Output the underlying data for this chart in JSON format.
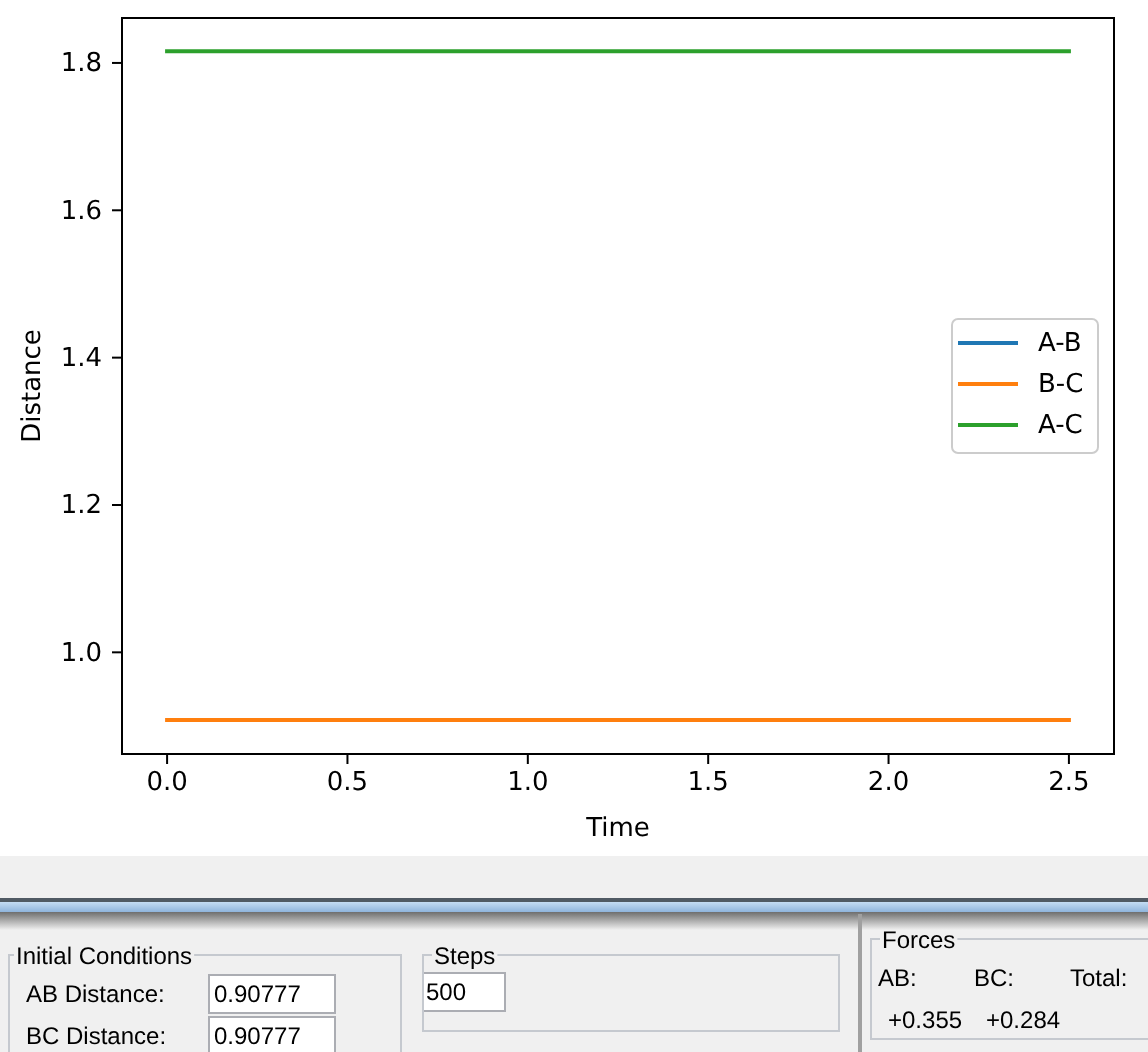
{
  "chart_data": [
    {
      "type": "line",
      "xlabel": "Time",
      "ylabel": "Distance",
      "x": [
        0,
        2.5
      ],
      "series": [
        {
          "name": "A-B",
          "color": "#1f77b4",
          "values": [
            null,
            null
          ]
        },
        {
          "name": "B-C",
          "color": "#ff7f0e",
          "values": [
            0.908,
            0.908
          ]
        },
        {
          "name": "A-C",
          "color": "#2ca02c",
          "values": [
            1.816,
            1.816
          ]
        }
      ],
      "xlim": [
        -0.125,
        2.625
      ],
      "xticks": [
        {
          "value": 0,
          "label": "0.0"
        },
        0.5,
        {
          "value": 1,
          "label": "1.0"
        },
        1.5,
        {
          "value": 2,
          "label": "2.0"
        },
        2.5
      ],
      "ylim": [
        0.862,
        1.861
      ],
      "yticks": [
        {
          "value": 1,
          "label": "1.0"
        },
        1.2,
        1.4,
        1.6,
        1.8
      ],
      "legend": "right"
    },
    {
      "type": "other",
      "annotations": [
        "Initial Conditions",
        "AB Distance:",
        "0.90777",
        "BC Distance:",
        "0.90777",
        "Steps",
        "500",
        "Forces",
        "AB:",
        "BC:",
        "Total:",
        "+0.355",
        "+0.284"
      ]
    }
  ]
}
